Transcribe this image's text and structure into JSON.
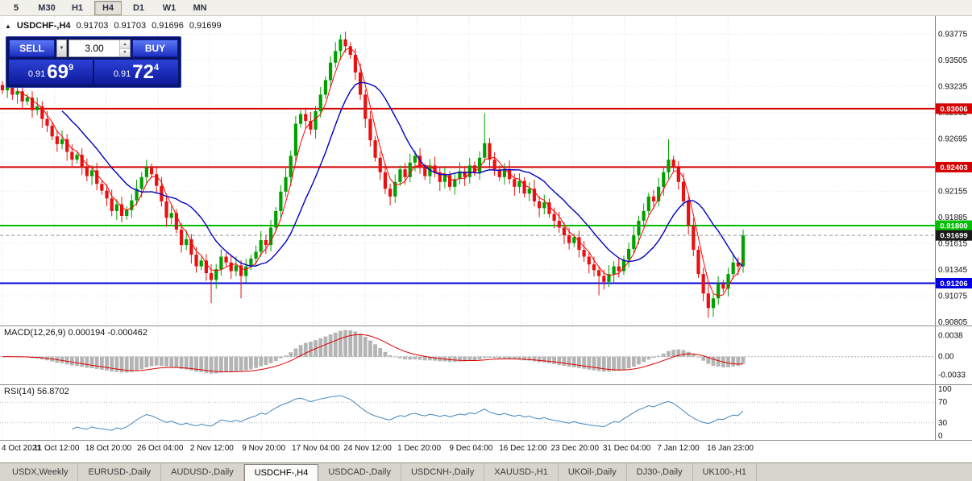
{
  "toolbar": {
    "timeframes": [
      {
        "label": "5",
        "active": false
      },
      {
        "label": "M30",
        "active": false
      },
      {
        "label": "H1",
        "active": false
      },
      {
        "label": "H4",
        "active": true
      },
      {
        "label": "D1",
        "active": false
      },
      {
        "label": "W1",
        "active": false
      },
      {
        "label": "MN",
        "active": false
      }
    ]
  },
  "icons": {
    "up_arrow": "▲",
    "dropdown": "▼",
    "spin_up": "▲",
    "spin_down": "▼"
  },
  "chart_header": {
    "symbol": "USDCHF-,H4",
    "open": "0.91703",
    "high": "0.91703",
    "low": "0.91696",
    "close": "0.91699"
  },
  "trade_panel": {
    "sell_label": "SELL",
    "buy_label": "BUY",
    "volume": "3.00",
    "sell_price": {
      "prefix": "0.91",
      "big": "69",
      "sup": "9"
    },
    "buy_price": {
      "prefix": "0.91",
      "big": "72",
      "sup": "4"
    }
  },
  "indicators": {
    "macd": {
      "label": "MACD(12,26,9) 0.000194 -0.000462"
    },
    "rsi": {
      "label": "RSI(14) 56.8702"
    }
  },
  "tabs": [
    {
      "label": "USDX,Weekly",
      "active": false
    },
    {
      "label": "EURUSD-,Daily",
      "active": false
    },
    {
      "label": "AUDUSD-,Daily",
      "active": false
    },
    {
      "label": "USDCHF-,H4",
      "active": true
    },
    {
      "label": "USDCAD-,Daily",
      "active": false
    },
    {
      "label": "USDCNH-,Daily",
      "active": false
    },
    {
      "label": "XAUUSD-,H1",
      "active": false
    },
    {
      "label": "UKOil-,Daily",
      "active": false
    },
    {
      "label": "DJ30-,Daily",
      "active": false
    },
    {
      "label": "UK100-,H1",
      "active": false
    }
  ],
  "chart_data": {
    "type": "candlestick",
    "symbol": "USDCHF-",
    "timeframe": "H4",
    "ohlc_display": {
      "open": 0.91703,
      "high": 0.91703,
      "low": 0.91696,
      "close": 0.91699
    },
    "ylim": [
      0.9077,
      0.9396
    ],
    "ticks": [
      0.93775,
      0.93505,
      0.93235,
      0.92965,
      0.92695,
      0.92425,
      0.92155,
      0.91885,
      0.91615,
      0.91345,
      0.91075,
      0.90805
    ],
    "levels": [
      {
        "value": 0.93006,
        "label": "0.93006",
        "type": "resistance",
        "color": "#D40000"
      },
      {
        "value": 0.92403,
        "label": "0.92403",
        "type": "resistance",
        "color": "#D40000"
      },
      {
        "value": 0.918,
        "label": "0.91800",
        "type": "support",
        "color": "#00BE00"
      },
      {
        "value": 0.91206,
        "label": "0.91206",
        "type": "support",
        "color": "#0000E0"
      }
    ],
    "current_price": {
      "value": 0.91699,
      "label": "0.91699",
      "color": "#1a1a1a"
    },
    "first_open": 0.9325,
    "closes": [
      0.93195,
      0.9323,
      0.9315,
      0.93185,
      0.9308,
      0.9312,
      0.9299,
      0.9303,
      0.929,
      0.9283,
      0.9272,
      0.9264,
      0.9269,
      0.9256,
      0.9248,
      0.9253,
      0.924,
      0.9231,
      0.9237,
      0.9223,
      0.9216,
      0.9208,
      0.9195,
      0.9202,
      0.919,
      0.9196,
      0.9206,
      0.9218,
      0.923,
      0.924,
      0.9233,
      0.9221,
      0.9205,
      0.9188,
      0.9193,
      0.9176,
      0.916,
      0.9166,
      0.915,
      0.9138,
      0.9144,
      0.9131,
      0.9124,
      0.9135,
      0.9148,
      0.9142,
      0.9133,
      0.9139,
      0.9128,
      0.9138,
      0.9146,
      0.9153,
      0.9165,
      0.916,
      0.9178,
      0.9195,
      0.9215,
      0.923,
      0.9252,
      0.9285,
      0.9295,
      0.9288,
      0.9279,
      0.9298,
      0.9315,
      0.933,
      0.9348,
      0.936,
      0.9372,
      0.9365,
      0.9356,
      0.9338,
      0.9315,
      0.929,
      0.9268,
      0.925,
      0.9235,
      0.9218,
      0.921,
      0.9225,
      0.9238,
      0.923,
      0.9245,
      0.9252,
      0.924,
      0.9231,
      0.9242,
      0.9235,
      0.9225,
      0.9232,
      0.922,
      0.9228,
      0.9236,
      0.923,
      0.9242,
      0.9235,
      0.925,
      0.9265,
      0.9248,
      0.9238,
      0.923,
      0.9238,
      0.9228,
      0.922,
      0.9226,
      0.9213,
      0.9218,
      0.9205,
      0.9198,
      0.9204,
      0.9192,
      0.9185,
      0.9178,
      0.917,
      0.9162,
      0.9168,
      0.9155,
      0.9148,
      0.914,
      0.9134,
      0.9128,
      0.9122,
      0.913,
      0.9138,
      0.9133,
      0.9145,
      0.9156,
      0.917,
      0.9185,
      0.9195,
      0.921,
      0.9205,
      0.922,
      0.9235,
      0.9248,
      0.924,
      0.9225,
      0.9205,
      0.918,
      0.9155,
      0.913,
      0.911,
      0.9095,
      0.9105,
      0.912,
      0.9115,
      0.913,
      0.9142,
      0.9138,
      0.91699
    ],
    "wick_overrides": {
      "42": {
        "l": 0.91
      },
      "48": {
        "l": 0.9105
      },
      "68": {
        "h": 0.9377
      },
      "97": {
        "h": 0.9296
      },
      "120": {
        "l": 0.9108
      },
      "134": {
        "h": 0.9269
      },
      "142": {
        "l": 0.9085
      },
      "149": {
        "h": 0.9176
      }
    },
    "ma_periods": [
      4,
      13
    ],
    "macd_params": [
      12,
      26,
      9
    ],
    "macd_ylim": [
      -0.005,
      0.0055
    ],
    "macd_axis": [
      {
        "v": 0.0038,
        "label": "0.0038"
      },
      {
        "v": 0.0,
        "label": "0.00"
      },
      {
        "v": -0.0033,
        "label": "-0.0033"
      }
    ],
    "rsi_period": 14,
    "rsi_axis": [
      {
        "v": 100,
        "label": "100"
      },
      {
        "v": 70,
        "label": "70"
      },
      {
        "v": 30,
        "label": "30"
      },
      {
        "v": 0,
        "label": "0"
      }
    ],
    "time_labels": [
      "4 Oct 2021",
      "11 Oct 12:00",
      "18 Oct 20:00",
      "26 Oct 04:00",
      "2 Nov 12:00",
      "9 Nov 20:00",
      "17 Nov 04:00",
      "24 Nov 12:00",
      "1 Dec 20:00",
      "9 Dec 04:00",
      "16 Dec 12:00",
      "23 Dec 20:00",
      "31 Dec 04:00",
      "7 Jan 12:00",
      "16 Jan 23:00"
    ],
    "colors": {
      "up": "#00A000",
      "down": "#E81010",
      "ma_fast": "#FF0000",
      "ma_slow": "#0000C0",
      "macd_hist": "#b4b4b4",
      "macd_signal": "#E00000",
      "rsi_line": "#4186BE",
      "grid": "#e6e6e6",
      "axis_text": "#111111"
    }
  }
}
